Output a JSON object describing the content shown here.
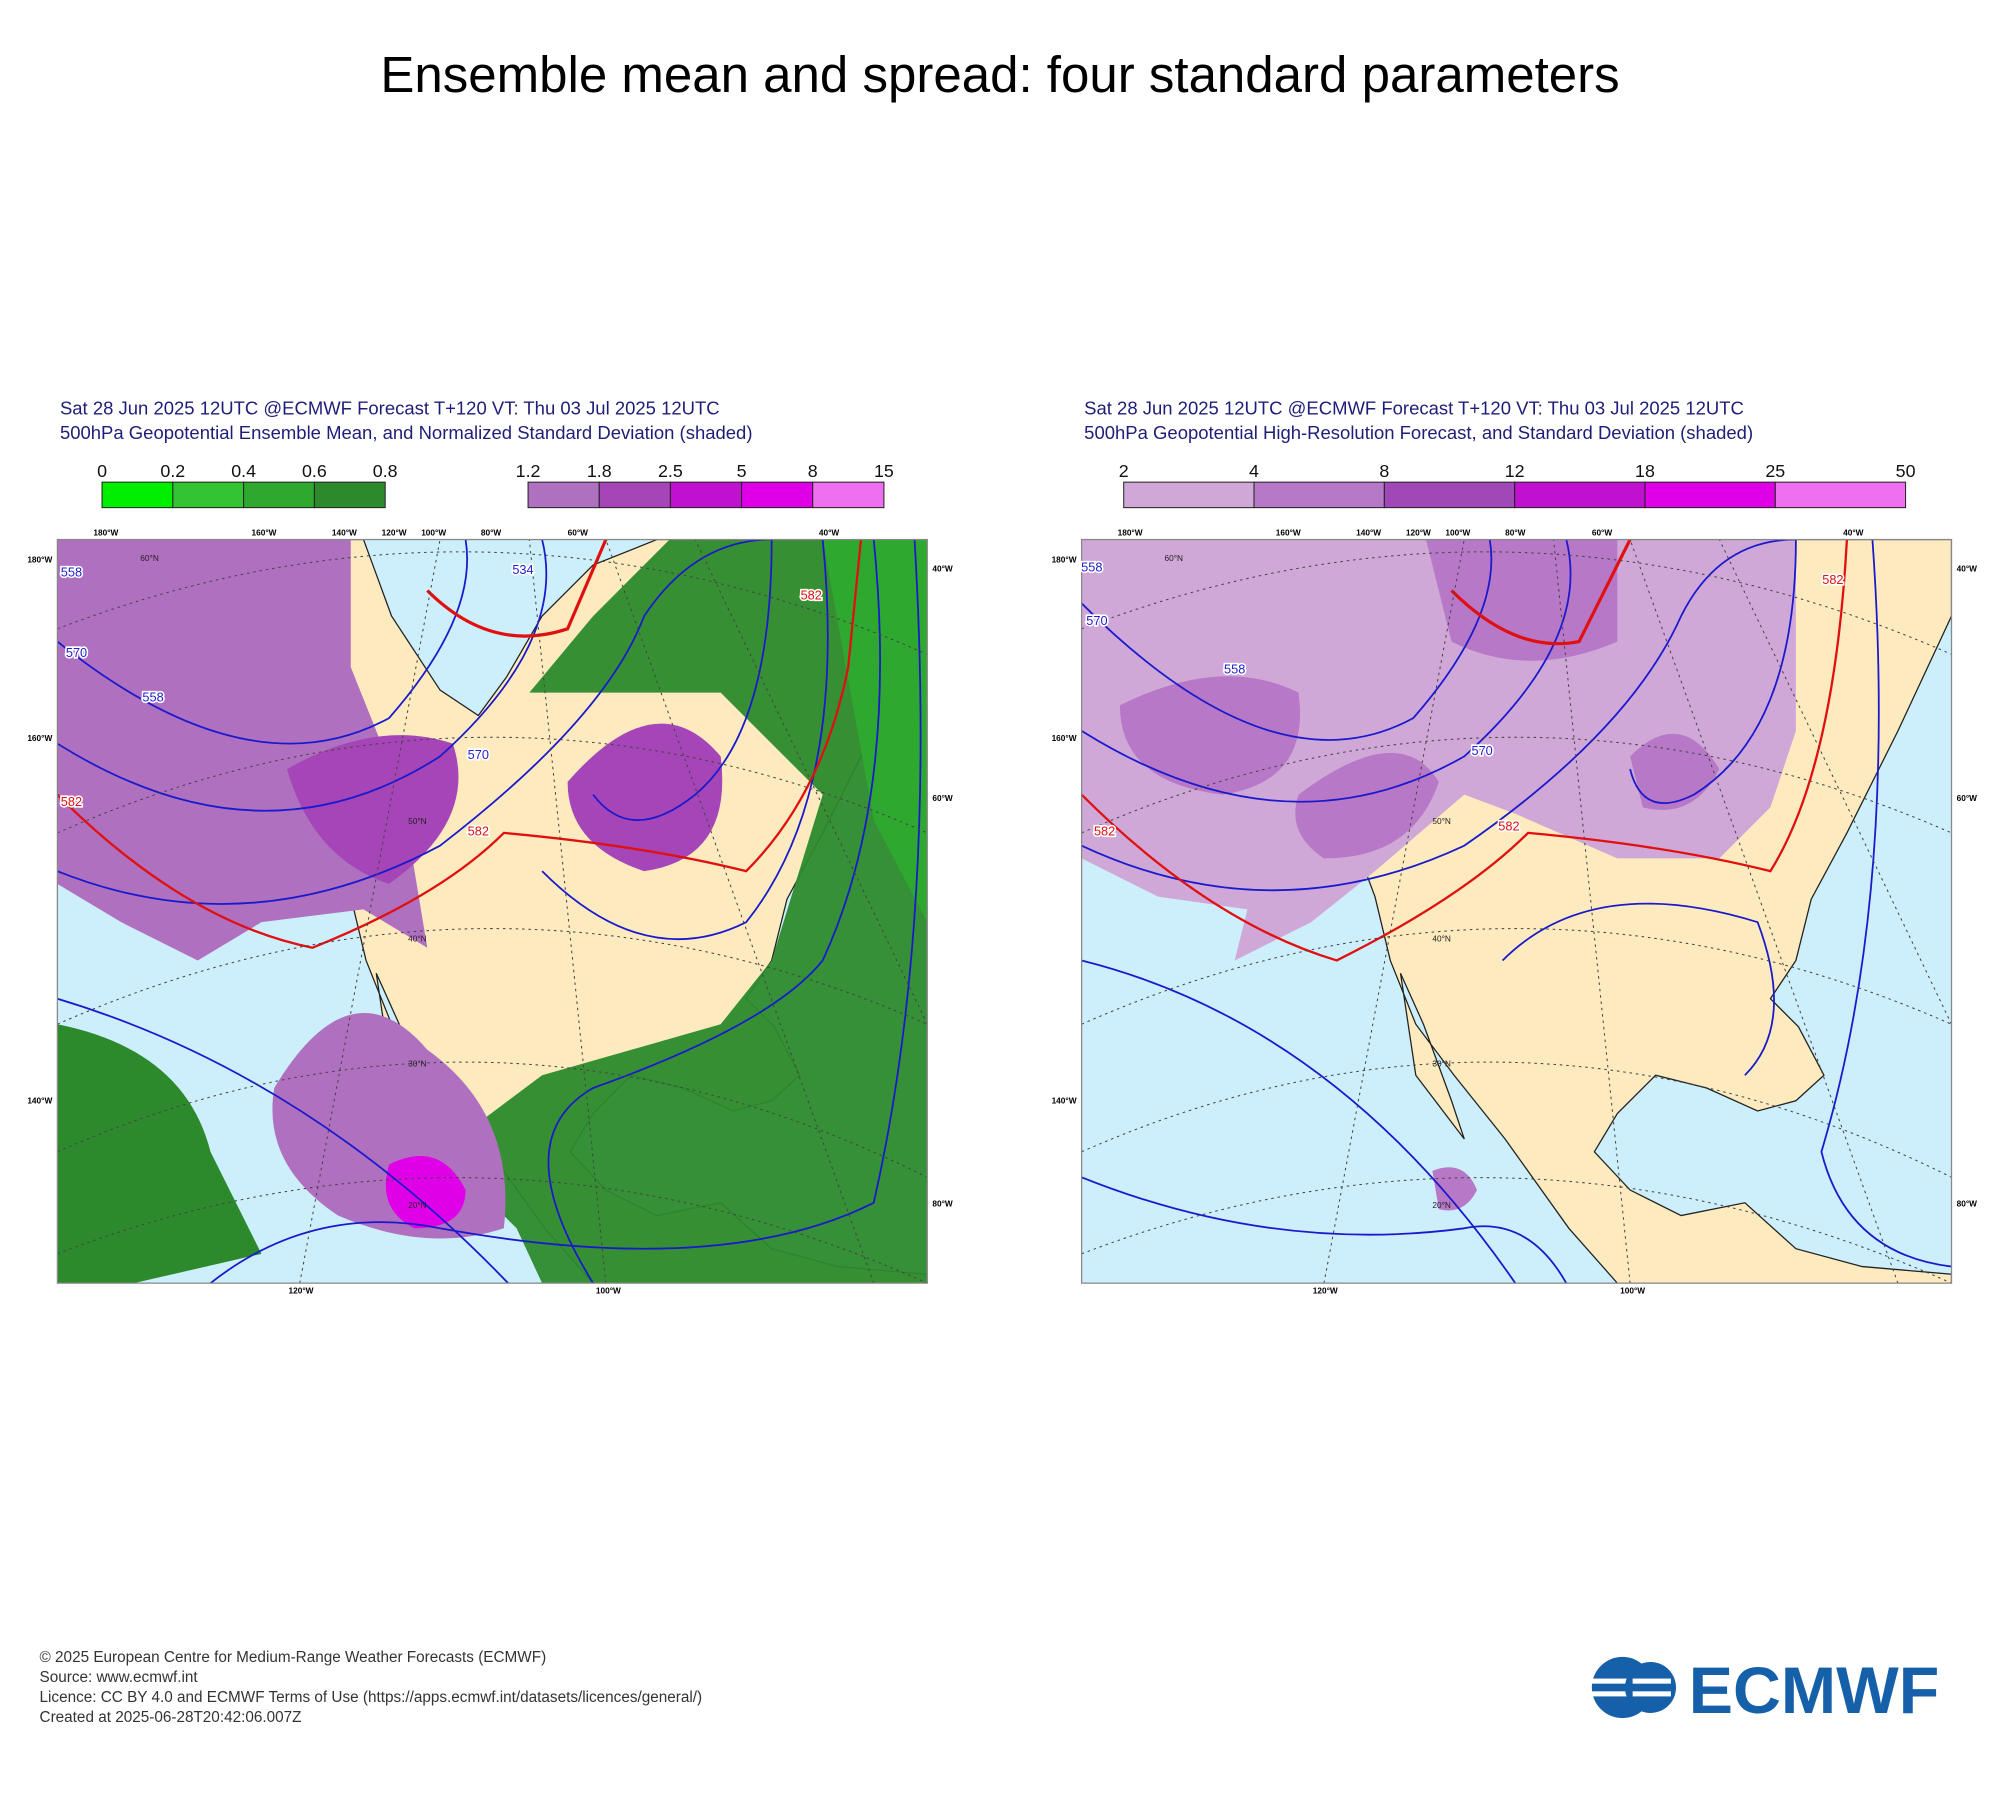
{
  "title": "Ensemble mean and spread: four standard parameters",
  "panels": [
    {
      "header": [
        "Sat 28 Jun 2025 12UTC @ECMWF Forecast T+120 VT: Thu 03 Jul 2025 12UTC",
        "500hPa Geopotential Ensemble Mean, and Normalized Standard Deviation (shaded)"
      ],
      "colorbars": [
        {
          "ticks": [
            "0",
            "0.2",
            "0.4",
            "0.6",
            "0.8"
          ],
          "colors": [
            "#00ee00",
            "#33c433",
            "#2ea82e",
            "#2c8a2c"
          ]
        },
        {
          "ticks": [
            "1.2",
            "1.8",
            "2.5",
            "5",
            "8",
            "15"
          ],
          "colors": [
            "#b070c0",
            "#a545b8",
            "#c010d0",
            "#e000e8",
            "#ee70f0"
          ]
        }
      ],
      "contour_labels": [
        "558",
        "570",
        "582",
        "558",
        "570",
        "582",
        "582",
        "534"
      ],
      "top_labels": [
        "180°W",
        "160°W",
        "140°W",
        "120°W",
        "100°W",
        "80°W",
        "60°W",
        "40°W"
      ],
      "left_labels": [
        "180°W",
        "160°W",
        "140°W"
      ],
      "right_labels": [
        "40°W",
        "60°W",
        "80°W"
      ],
      "bottom_labels": [
        "120°W",
        "100°W"
      ],
      "lat_labels": [
        "60°N",
        "50°N",
        "40°N",
        "30°N",
        "20°N"
      ]
    },
    {
      "header": [
        "Sat 28 Jun 2025 12UTC @ECMWF Forecast T+120 VT: Thu 03 Jul 2025 12UTC",
        "500hPa Geopotential High-Resolution Forecast, and Standard Deviation (shaded)"
      ],
      "colorbars": [
        {
          "ticks": [
            "2",
            "4",
            "8",
            "12",
            "18",
            "25",
            "50"
          ],
          "colors": [
            "#d0a8d8",
            "#b878c8",
            "#a048b8",
            "#c010d0",
            "#e000e8",
            "#ee70f0"
          ]
        }
      ],
      "contour_labels": [
        "558",
        "570",
        "582",
        "558",
        "570",
        "582",
        "582"
      ],
      "top_labels": [
        "180°W",
        "160°W",
        "140°W",
        "120°W",
        "100°W",
        "80°W",
        "60°W",
        "40°W"
      ],
      "left_labels": [
        "180°W",
        "160°W",
        "140°W"
      ],
      "right_labels": [
        "40°W",
        "60°W",
        "80°W"
      ],
      "bottom_labels": [
        "120°W",
        "100°W"
      ],
      "lat_labels": [
        "60°N",
        "50°N",
        "40°N",
        "30°N",
        "20°N"
      ]
    }
  ],
  "footer": [
    "© 2025 European Centre for Medium-Range Weather Forecasts (ECMWF)",
    "Source: www.ecmwf.int",
    "Licence: CC BY 4.0 and ECMWF Terms of Use (https://apps.ecmwf.int/datasets/licences/general/)",
    "Created at 2025-06-28T20:42:06.007Z"
  ],
  "logo": "ECMWF"
}
